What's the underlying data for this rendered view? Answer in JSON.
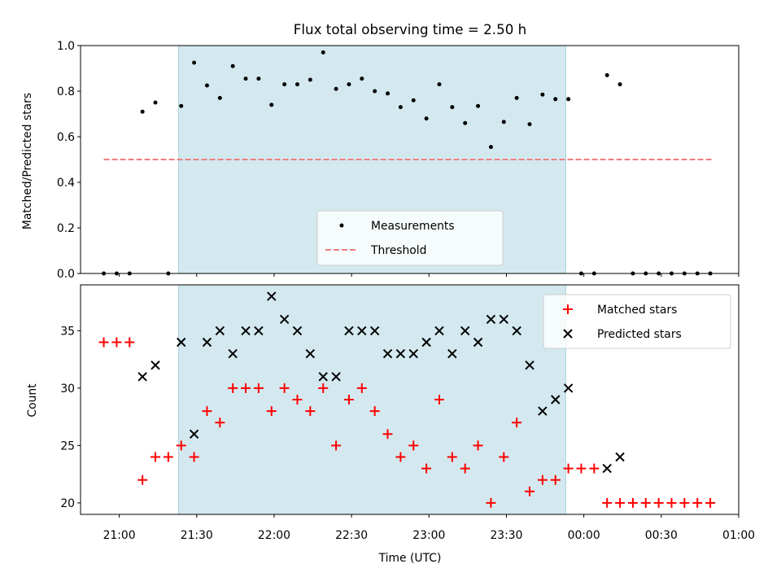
{
  "chart_data": [
    {
      "type": "scatter",
      "title": "Flux total observing time = 2.50 h",
      "xlabel": "",
      "ylabel": "Matched/Predicted stars",
      "ylim": [
        0,
        1.0
      ],
      "yticks": [
        "0.0",
        "0.2",
        "0.4",
        "0.6",
        "0.8",
        "1.0"
      ],
      "ytick_values": [
        0,
        0.2,
        0.4,
        0.6,
        0.8,
        1.0
      ],
      "shaded_interval": [
        "21:23",
        "23:53"
      ],
      "shade_color": "#d3e9ef",
      "threshold": {
        "name": "Threshold",
        "value": 0.5,
        "x_range": [
          "20:54",
          "00:50"
        ],
        "color": "#f08080"
      },
      "series": [
        {
          "name": "Measurements",
          "color": "#000000",
          "x": [
            "20:54",
            "20:59",
            "21:04",
            "21:09",
            "21:14",
            "21:19",
            "21:24",
            "21:29",
            "21:34",
            "21:39",
            "21:44",
            "21:49",
            "21:54",
            "21:59",
            "22:04",
            "22:09",
            "22:14",
            "22:19",
            "22:24",
            "22:29",
            "22:34",
            "22:39",
            "22:44",
            "22:49",
            "22:54",
            "22:59",
            "23:04",
            "23:09",
            "23:14",
            "23:19",
            "23:24",
            "23:29",
            "23:34",
            "23:39",
            "23:44",
            "23:49",
            "23:54",
            "23:59",
            "00:04",
            "00:09",
            "00:14",
            "00:19",
            "00:24",
            "00:29",
            "00:34",
            "00:39",
            "00:44",
            "00:49"
          ],
          "values": [
            0,
            0,
            0,
            0.71,
            0.75,
            0,
            0.735,
            0.925,
            0.825,
            0.77,
            0.91,
            0.855,
            0.855,
            0.74,
            0.83,
            0.83,
            0.85,
            0.97,
            0.81,
            0.83,
            0.855,
            0.8,
            0.79,
            0.73,
            0.76,
            0.68,
            0.83,
            0.73,
            0.66,
            0.735,
            0.555,
            0.665,
            0.77,
            0.655,
            0.785,
            0.765,
            0.765,
            0,
            0,
            0.87,
            0.83,
            0,
            0,
            0,
            0,
            0,
            0,
            0
          ]
        }
      ],
      "legend": {
        "placement": "lower-center",
        "entries": [
          "Measurements",
          "Threshold"
        ]
      }
    },
    {
      "type": "scatter",
      "title": "",
      "xlabel": "Time (UTC)",
      "ylabel": "Count",
      "ylim": [
        19,
        39
      ],
      "yticks": [
        "20",
        "25",
        "30",
        "35"
      ],
      "ytick_values": [
        20,
        25,
        30,
        35
      ],
      "xticks": [
        "21:00",
        "21:30",
        "22:00",
        "22:30",
        "23:00",
        "23:30",
        "00:00",
        "00:30",
        "01:00"
      ],
      "shaded_interval": [
        "21:23",
        "23:53"
      ],
      "series": [
        {
          "name": "Matched stars",
          "color": "#ff0000",
          "marker": "+",
          "x": [
            "20:54",
            "20:59",
            "21:04",
            "21:09",
            "21:14",
            "21:19",
            "21:24",
            "21:29",
            "21:34",
            "21:39",
            "21:44",
            "21:49",
            "21:54",
            "21:59",
            "22:04",
            "22:09",
            "22:14",
            "22:19",
            "22:24",
            "22:29",
            "22:34",
            "22:39",
            "22:44",
            "22:49",
            "22:54",
            "22:59",
            "23:04",
            "23:09",
            "23:14",
            "23:19",
            "23:24",
            "23:29",
            "23:34",
            "23:39",
            "23:44",
            "23:49",
            "23:54",
            "23:59",
            "00:04",
            "00:09",
            "00:14",
            "00:19",
            "00:24",
            "00:29",
            "00:34",
            "00:39",
            "00:44",
            "00:49"
          ],
          "values": [
            34,
            34,
            34,
            22,
            24,
            24,
            25,
            24,
            28,
            27,
            30,
            30,
            30,
            28,
            30,
            29,
            28,
            30,
            25,
            29,
            30,
            28,
            26,
            24,
            25,
            23,
            29,
            24,
            23,
            25,
            20,
            24,
            27,
            21,
            22,
            22,
            23,
            23,
            23,
            20,
            20,
            20,
            20,
            20,
            20,
            20,
            20,
            20
          ]
        },
        {
          "name": "Predicted stars",
          "color": "#000000",
          "marker": "x",
          "x": [
            "21:09",
            "21:14",
            "21:24",
            "21:29",
            "21:34",
            "21:39",
            "21:44",
            "21:49",
            "21:54",
            "21:59",
            "22:04",
            "22:09",
            "22:14",
            "22:19",
            "22:24",
            "22:29",
            "22:34",
            "22:39",
            "22:44",
            "22:49",
            "22:54",
            "22:59",
            "23:04",
            "23:09",
            "23:14",
            "23:19",
            "23:24",
            "23:29",
            "23:34",
            "23:39",
            "23:44",
            "23:49",
            "23:54",
            "00:09",
            "00:14"
          ],
          "values": [
            31,
            32,
            34,
            26,
            34,
            35,
            33,
            35,
            35,
            38,
            36,
            35,
            33,
            31,
            31,
            35,
            35,
            35,
            33,
            33,
            33,
            34,
            35,
            33,
            35,
            34,
            36,
            36,
            35,
            32,
            28,
            29,
            30,
            23,
            24
          ]
        }
      ],
      "legend": {
        "placement": "upper-right",
        "entries": [
          "Matched stars",
          "Predicted stars"
        ]
      }
    }
  ]
}
